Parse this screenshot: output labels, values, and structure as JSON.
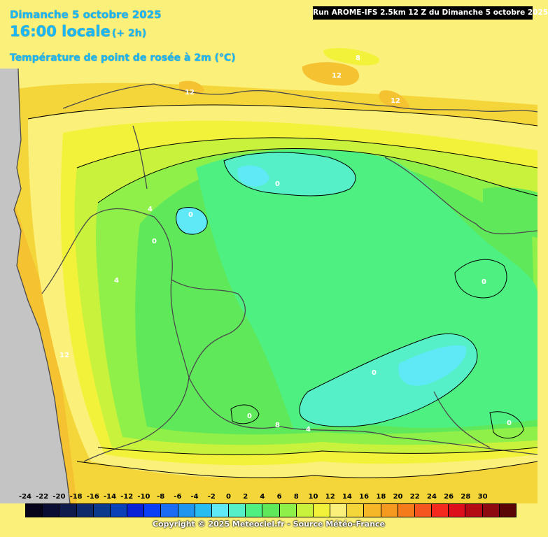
{
  "header": {
    "date": "Dimanche 5 octobre 2025",
    "local_time": "16:00 locale",
    "offset": "(+ 2h)",
    "parameter": "Température de point de rosée à 2m (°C)"
  },
  "run_info": "Run AROME-IFS 2.5km 12 Z du Dimanche 5 octobre 2025",
  "contour_labels": [
    "8",
    "12",
    "12",
    "12",
    "0",
    "4",
    "0",
    "0",
    "4",
    "0",
    "12",
    "0",
    "0",
    "8",
    "4",
    "0"
  ],
  "legend": {
    "labels": [
      "-24",
      "-22",
      "-20",
      "-18",
      "-16",
      "-14",
      "-12",
      "-10",
      "-8",
      "-6",
      "-4",
      "-2",
      "0",
      "2",
      "4",
      "6",
      "8",
      "10",
      "12",
      "14",
      "16",
      "18",
      "20",
      "22",
      "24",
      "26",
      "28",
      "30"
    ],
    "colors": [
      "#05041a",
      "#0a0d33",
      "#0f1a4d",
      "#0f2a6b",
      "#0b3a8c",
      "#0b40b8",
      "#0a22d6",
      "#0a3ff5",
      "#1b6cf2",
      "#1e96f0",
      "#28bdf0",
      "#5fe8f5",
      "#55f0c8",
      "#4ff082",
      "#5ee85a",
      "#8ef048",
      "#c8f23c",
      "#f2f23a",
      "#fbf07a",
      "#f5d63a",
      "#f5b728",
      "#f59a1e",
      "#f57a1a",
      "#f5551e",
      "#f52a1e",
      "#dc0f1a",
      "#b40a14",
      "#8c0a10",
      "#5a0505"
    ]
  },
  "copyright": "Copyright © 2025 Meteociel.fr - Source Météo-France"
}
